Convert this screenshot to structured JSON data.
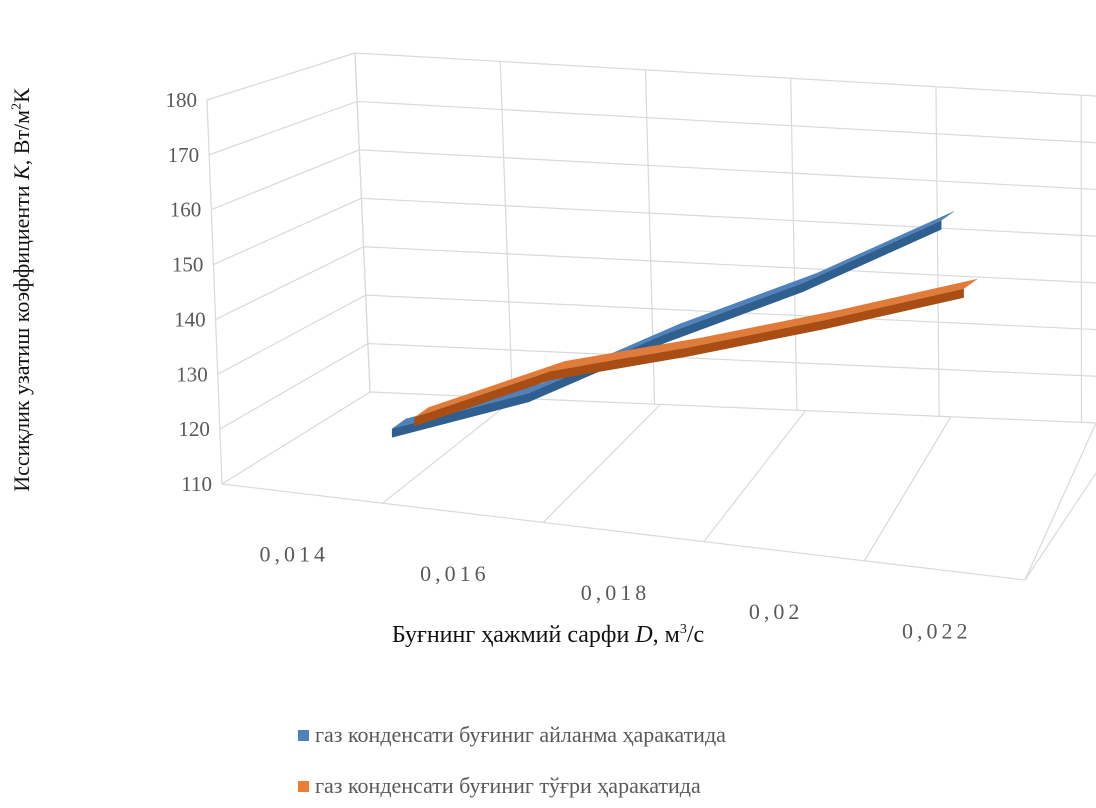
{
  "chart_data": {
    "type": "line",
    "title": "",
    "categories": [
      "0,014",
      "0,016",
      "0,018",
      "0,02",
      "0,022"
    ],
    "ylim": [
      110,
      180
    ],
    "yticks": [
      "110",
      "120",
      "130",
      "140",
      "150",
      "160",
      "170",
      "180"
    ],
    "ylabel_main": "Иссиқлик узатиш коэффициенти ",
    "ylabel_var": "K",
    "ylabel_unit_a": ", Вт/м",
    "ylabel_unit_sup": "2",
    "ylabel_unit_b": "К",
    "xlabel_main": "Буғнинг ҳажмий сарфи  ",
    "xlabel_var": "D",
    "xlabel_unit_a": ", м",
    "xlabel_unit_sup": "3",
    "xlabel_unit_b": "/с",
    "grid": true,
    "legend_position": "bottom",
    "series": [
      {
        "name": "газ конденсати буғиниг айланма ҳаракатида",
        "color": "#4f81bd",
        "dark": "#2e5f8f",
        "values": [
          128,
          133,
          143,
          152,
          164
        ]
      },
      {
        "name": "газ конденсати буғиниг тўғри ҳаракатида",
        "color": "#e07b39",
        "dark": "#a84d14",
        "values": [
          126,
          133,
          136,
          140,
          145
        ]
      }
    ]
  }
}
